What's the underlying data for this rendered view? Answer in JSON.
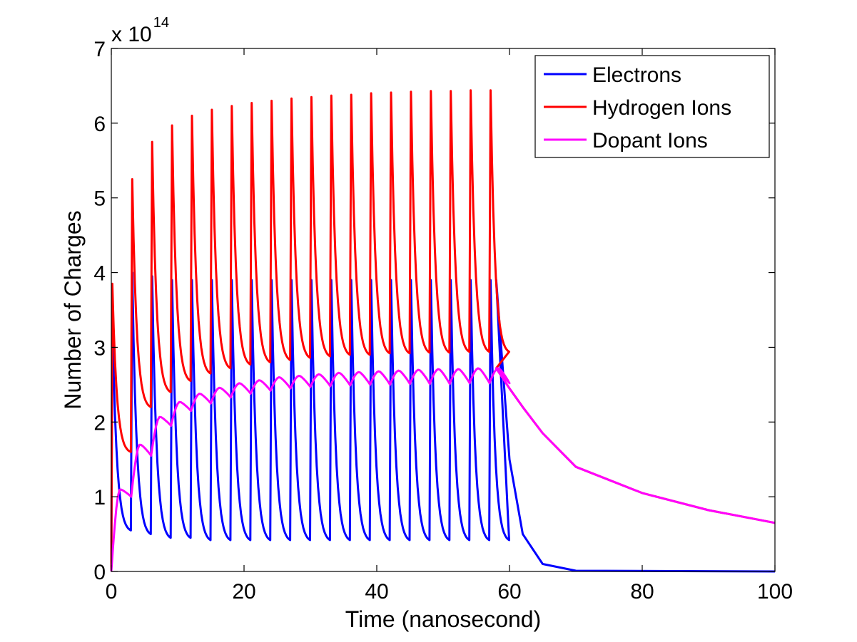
{
  "chart_data": {
    "type": "line",
    "title": "",
    "xlabel": "Time (nanosecond)",
    "ylabel": "Number of Charges",
    "y_scale_multiplier": {
      "base": "x 10",
      "exponent": "14"
    },
    "xlim": [
      0,
      100
    ],
    "ylim": [
      0,
      7
    ],
    "x_ticks": [
      0,
      20,
      40,
      60,
      80,
      100
    ],
    "y_ticks": [
      0,
      1,
      2,
      3,
      4,
      5,
      6,
      7
    ],
    "grid": false,
    "legend_position": "top-right",
    "pulse_period_ns": 3,
    "pulse_count": 20,
    "last_pulse_end_ns": 58,
    "series": [
      {
        "name": "Electrons",
        "color": "#0000ff",
        "pulse_peaks": [
          3.4,
          4.0,
          3.95,
          3.9,
          3.9,
          3.9,
          3.9,
          3.9,
          3.9,
          3.9,
          3.9,
          3.9,
          3.9,
          3.9,
          3.9,
          3.9,
          3.9,
          3.9,
          3.9,
          3.9
        ],
        "pulse_troughs": [
          0.55,
          0.5,
          0.45,
          0.45,
          0.42,
          0.42,
          0.42,
          0.42,
          0.42,
          0.42,
          0.42,
          0.42,
          0.42,
          0.42,
          0.42,
          0.42,
          0.42,
          0.42,
          0.42,
          0.42
        ],
        "tail": [
          [
            58,
            3.9
          ],
          [
            60,
            1.5
          ],
          [
            62,
            0.5
          ],
          [
            65,
            0.1
          ],
          [
            70,
            0.01
          ],
          [
            100,
            0.0
          ]
        ]
      },
      {
        "name": "Hydrogen Ions",
        "color": "#ff0000",
        "pulse_peaks": [
          3.85,
          5.25,
          5.75,
          5.97,
          6.1,
          6.18,
          6.23,
          6.27,
          6.3,
          6.33,
          6.35,
          6.37,
          6.38,
          6.4,
          6.41,
          6.42,
          6.43,
          6.43,
          6.44,
          6.44
        ],
        "pulse_troughs": [
          1.6,
          2.2,
          2.4,
          2.55,
          2.65,
          2.72,
          2.77,
          2.8,
          2.83,
          2.86,
          2.88,
          2.9,
          2.9,
          2.92,
          2.92,
          2.93,
          2.93,
          2.94,
          2.94,
          2.94
        ],
        "tail": [
          [
            58,
            2.72
          ],
          [
            60,
            2.45
          ],
          [
            62,
            2.2
          ],
          [
            65,
            1.85
          ],
          [
            70,
            1.4
          ],
          [
            80,
            1.05
          ],
          [
            90,
            0.82
          ],
          [
            100,
            0.65
          ]
        ]
      },
      {
        "name": "Dopant Ions",
        "color": "#ff00ff",
        "pulse_peaks": [
          1.1,
          1.7,
          2.07,
          2.27,
          2.38,
          2.46,
          2.52,
          2.56,
          2.6,
          2.62,
          2.64,
          2.66,
          2.67,
          2.68,
          2.69,
          2.7,
          2.71,
          2.71,
          2.72,
          2.72
        ],
        "pulse_troughs": [
          1.0,
          1.55,
          1.95,
          2.15,
          2.25,
          2.33,
          2.38,
          2.42,
          2.45,
          2.47,
          2.48,
          2.49,
          2.5,
          2.5,
          2.51,
          2.51,
          2.51,
          2.52,
          2.52,
          2.52
        ],
        "tail": [
          [
            58,
            2.72
          ],
          [
            60,
            2.45
          ],
          [
            62,
            2.2
          ],
          [
            65,
            1.85
          ],
          [
            70,
            1.4
          ],
          [
            80,
            1.05
          ],
          [
            90,
            0.82
          ],
          [
            100,
            0.65
          ]
        ]
      }
    ]
  }
}
